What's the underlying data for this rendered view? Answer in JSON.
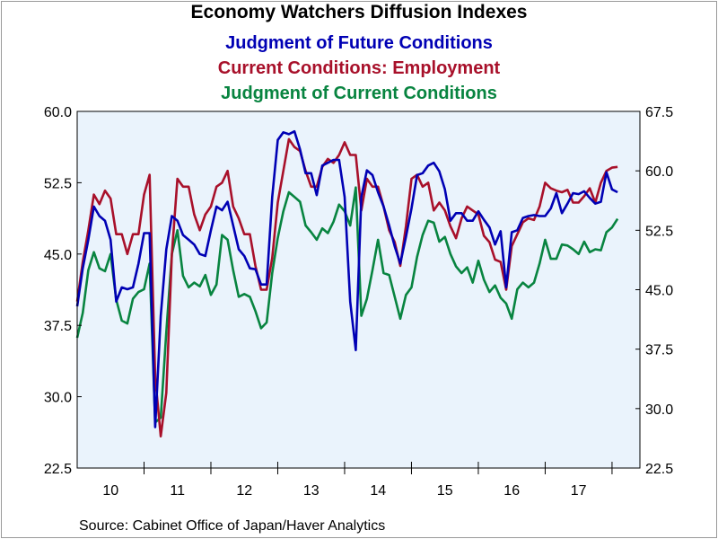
{
  "chart": {
    "title": "Economy Watchers Diffusion Indexes",
    "source": "Source:  Cabinet Office of Japan/Haver Analytics"
  },
  "chart_data": {
    "type": "line",
    "title": "Economy Watchers Diffusion Indexes",
    "plot_background": "#eaf3fc",
    "grid": false,
    "x_range": [
      2009.5,
      2017.917
    ],
    "x_tick_labels": [
      {
        "label": "10",
        "center": 2010.0
      },
      {
        "label": "11",
        "center": 2011.0
      },
      {
        "label": "12",
        "center": 2012.0
      },
      {
        "label": "13",
        "center": 2013.0
      },
      {
        "label": "14",
        "center": 2014.0
      },
      {
        "label": "15",
        "center": 2015.0
      },
      {
        "label": "16",
        "center": 2016.0
      },
      {
        "label": "17",
        "center": 2017.0
      }
    ],
    "y_left": {
      "ylim": [
        22.5,
        60.0
      ],
      "ticks": [
        "22.5",
        "30.0",
        "37.5",
        "45.0",
        "52.5",
        "60.0"
      ]
    },
    "y_right": {
      "ylim": [
        22.5,
        67.5
      ],
      "ticks": [
        "22.5",
        "30.0",
        "37.5",
        "45.0",
        "52.5",
        "60.0",
        "67.5"
      ]
    },
    "series": [
      {
        "name": "Judgment of Future Conditions",
        "color": "#0000b4",
        "axis": "left",
        "x_start": 2009.5,
        "x_step": 0.0833333,
        "values": [
          39.5,
          43.5,
          46.5,
          50.0,
          49.0,
          48.5,
          46.5,
          40.0,
          41.5,
          41.3,
          41.5,
          44.0,
          47.2,
          47.2,
          26.8,
          38.5,
          45.5,
          49.0,
          48.5,
          47.0,
          46.5,
          46.0,
          45.0,
          44.8,
          47.5,
          50.0,
          49.6,
          50.5,
          48.0,
          45.5,
          44.8,
          43.5,
          43.4,
          41.8,
          41.8,
          51.0,
          57.0,
          57.8,
          57.6,
          57.9,
          56.0,
          53.5,
          53.5,
          51.2,
          54.3,
          54.6,
          54.9,
          54.9,
          51.0,
          40.0,
          34.9,
          51.0,
          53.8,
          53.3,
          51.5,
          50.0,
          48.0,
          45.8,
          44.0,
          46.8,
          49.8,
          53.3,
          53.5,
          54.3,
          54.6,
          53.7,
          51.8,
          48.5,
          49.3,
          49.3,
          48.5,
          48.5,
          49.5,
          48.6,
          47.8,
          46.0,
          47.4,
          41.5,
          47.3,
          47.5,
          48.8,
          49.0,
          49.1,
          49.0,
          49.0,
          49.8,
          51.4,
          49.3,
          50.3,
          51.4,
          51.3,
          51.6,
          50.9,
          50.3,
          50.5,
          53.6,
          51.8,
          51.5
        ]
      },
      {
        "name": "Current Conditions: Employment",
        "color": "#a8102a",
        "axis": "right",
        "x_start": 2009.5,
        "x_step": 0.0833333,
        "values": [
          43.5,
          48.5,
          52.5,
          57.0,
          55.8,
          57.5,
          56.5,
          52.0,
          52.0,
          49.5,
          52.0,
          52.0,
          57.0,
          59.5,
          34.0,
          26.5,
          32.0,
          49.5,
          59.0,
          58.0,
          58.0,
          54.5,
          52.5,
          54.5,
          55.5,
          58.0,
          58.5,
          60.0,
          55.5,
          54.0,
          52.0,
          52.0,
          48.0,
          45.0,
          45.0,
          49.0,
          56.0,
          60.0,
          64.0,
          63.0,
          62.5,
          60.0,
          58.0,
          58.0,
          60.5,
          61.5,
          61.0,
          62.0,
          63.6,
          62.0,
          62.0,
          55.0,
          59.0,
          58.0,
          58.0,
          55.5,
          52.5,
          51.0,
          48.0,
          53.0,
          59.0,
          59.5,
          58.0,
          58.5,
          55.0,
          56.0,
          55.0,
          53.0,
          51.5,
          54.0,
          55.5,
          55.0,
          54.5,
          51.8,
          51.0,
          48.8,
          48.5,
          45.0,
          50.5,
          52.0,
          53.5,
          54.0,
          53.8,
          55.5,
          58.5,
          57.8,
          57.5,
          57.3,
          57.6,
          56.0,
          56.0,
          56.8,
          57.8,
          56.0,
          58.5,
          60.0,
          60.4,
          60.5
        ]
      },
      {
        "name": "Judgment of Current Conditions",
        "color": "#088440",
        "axis": "left",
        "x_start": 2009.5,
        "x_step": 0.0833333,
        "values": [
          36.2,
          38.8,
          43.3,
          45.2,
          43.5,
          43.2,
          45.0,
          40.2,
          38.0,
          37.7,
          40.3,
          41.0,
          41.3,
          44.0,
          27.3,
          27.8,
          36.8,
          45.0,
          47.5,
          42.7,
          41.5,
          42.0,
          41.6,
          42.8,
          40.7,
          41.8,
          47.0,
          46.5,
          43.3,
          40.5,
          40.8,
          40.5,
          39.0,
          37.2,
          37.8,
          43.0,
          46.7,
          49.5,
          51.5,
          51.0,
          50.5,
          48.0,
          47.3,
          46.5,
          47.7,
          47.2,
          48.4,
          50.2,
          49.5,
          48.0,
          52.0,
          38.5,
          40.3,
          43.3,
          46.5,
          43.0,
          42.8,
          40.5,
          38.2,
          40.7,
          41.5,
          44.7,
          47.0,
          48.5,
          48.3,
          46.3,
          46.8,
          45.0,
          43.7,
          43.0,
          43.6,
          42.0,
          44.3,
          42.3,
          41.0,
          41.7,
          40.4,
          39.8,
          38.2,
          41.3,
          42.0,
          41.5,
          42.0,
          44.0,
          46.5,
          44.5,
          44.5,
          46.0,
          45.9,
          45.5,
          45.0,
          46.3,
          45.2,
          45.5,
          45.4,
          47.3,
          47.8,
          48.7
        ]
      }
    ]
  }
}
